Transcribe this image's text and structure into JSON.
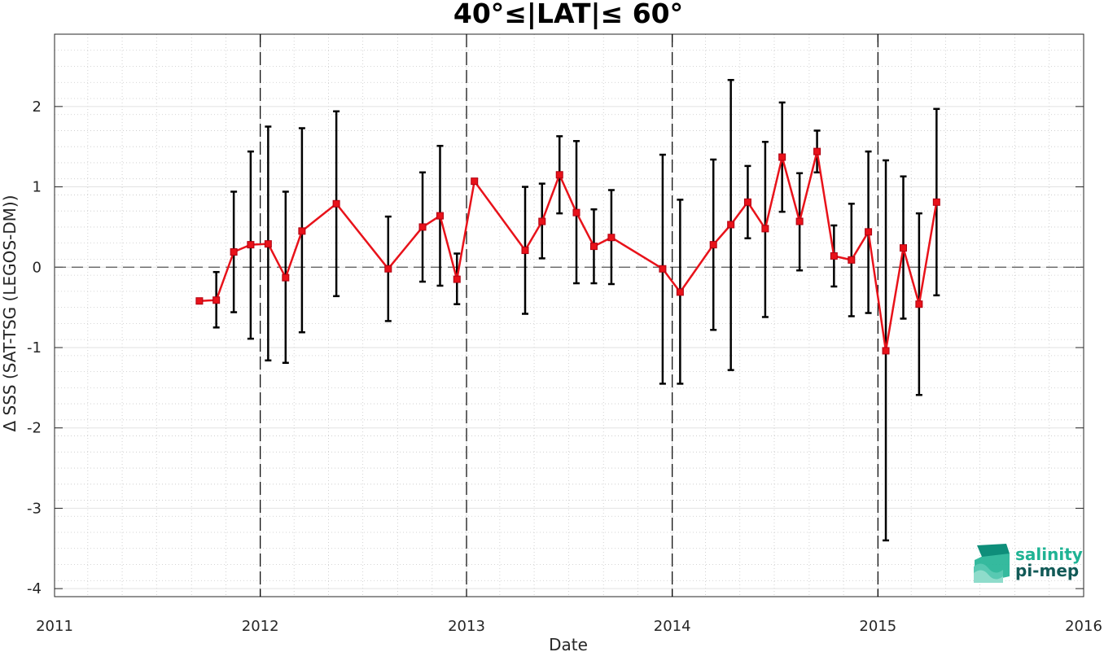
{
  "chart_data": {
    "type": "line",
    "title": "40°≤|LAT|≤ 60°",
    "xlabel": "Date",
    "ylabel": "Δ SSS (SAT-TSG (LEGOS-DM))",
    "xlim": [
      "2011-01-01",
      "2016-01-01"
    ],
    "ylim": [
      -4.1,
      2.9
    ],
    "xticks": [
      "2011",
      "2012",
      "2013",
      "2014",
      "2015",
      "2016"
    ],
    "yticks": [
      -4,
      -3,
      -2,
      -1,
      0,
      1,
      2
    ],
    "ytick_labels": [
      "-4",
      "-3",
      "-2",
      "-1",
      "0",
      "1",
      "2"
    ],
    "grid": true,
    "year_boundaries": [
      "2012-01-01",
      "2013-01-01",
      "2014-01-01",
      "2015-01-01"
    ],
    "zero_line": 0,
    "series": [
      {
        "color": "#e8121a",
        "marker": "square",
        "errorbar_color": "#000000",
        "points": [
          {
            "x": "2011-09-15",
            "y": -0.42,
            "lo": -0.42,
            "hi": -0.42
          },
          {
            "x": "2011-10-15",
            "y": -0.41,
            "lo": -0.75,
            "hi": -0.06
          },
          {
            "x": "2011-11-15",
            "y": 0.19,
            "lo": -0.56,
            "hi": 0.94
          },
          {
            "x": "2011-12-15",
            "y": 0.28,
            "lo": -0.89,
            "hi": 1.44
          },
          {
            "x": "2012-01-15",
            "y": 0.29,
            "lo": -1.16,
            "hi": 1.75
          },
          {
            "x": "2012-02-15",
            "y": -0.13,
            "lo": -1.19,
            "hi": 0.94
          },
          {
            "x": "2012-03-15",
            "y": 0.45,
            "lo": -0.81,
            "hi": 1.73
          },
          {
            "x": "2012-05-15",
            "y": 0.79,
            "lo": -0.36,
            "hi": 1.94
          },
          {
            "x": "2012-08-15",
            "y": -0.02,
            "lo": -0.67,
            "hi": 0.63
          },
          {
            "x": "2012-10-15",
            "y": 0.5,
            "lo": -0.18,
            "hi": 1.18
          },
          {
            "x": "2012-11-15",
            "y": 0.64,
            "lo": -0.23,
            "hi": 1.51
          },
          {
            "x": "2012-12-15",
            "y": -0.15,
            "lo": -0.46,
            "hi": 0.17
          },
          {
            "x": "2013-01-15",
            "y": 1.07,
            "lo": 1.07,
            "hi": 1.07
          },
          {
            "x": "2013-04-15",
            "y": 0.21,
            "lo": -0.58,
            "hi": 1.0
          },
          {
            "x": "2013-05-15",
            "y": 0.57,
            "lo": 0.11,
            "hi": 1.04
          },
          {
            "x": "2013-06-15",
            "y": 1.15,
            "lo": 0.67,
            "hi": 1.63
          },
          {
            "x": "2013-07-15",
            "y": 0.68,
            "lo": -0.2,
            "hi": 1.57
          },
          {
            "x": "2013-08-15",
            "y": 0.26,
            "lo": -0.2,
            "hi": 0.72
          },
          {
            "x": "2013-09-15",
            "y": 0.37,
            "lo": -0.21,
            "hi": 0.96
          },
          {
            "x": "2013-12-15",
            "y": -0.02,
            "lo": -1.45,
            "hi": 1.4
          },
          {
            "x": "2014-01-15",
            "y": -0.31,
            "lo": -1.45,
            "hi": 0.84
          },
          {
            "x": "2014-03-15",
            "y": 0.28,
            "lo": -0.78,
            "hi": 1.34
          },
          {
            "x": "2014-04-15",
            "y": 0.53,
            "lo": -1.28,
            "hi": 2.33
          },
          {
            "x": "2014-05-15",
            "y": 0.81,
            "lo": 0.36,
            "hi": 1.26
          },
          {
            "x": "2014-06-15",
            "y": 0.48,
            "lo": -0.62,
            "hi": 1.56
          },
          {
            "x": "2014-07-15",
            "y": 1.37,
            "lo": 0.69,
            "hi": 2.05
          },
          {
            "x": "2014-08-15",
            "y": 0.57,
            "lo": -0.04,
            "hi": 1.17
          },
          {
            "x": "2014-09-15",
            "y": 1.44,
            "lo": 1.18,
            "hi": 1.7
          },
          {
            "x": "2014-10-15",
            "y": 0.14,
            "lo": -0.24,
            "hi": 0.52
          },
          {
            "x": "2014-11-15",
            "y": 0.09,
            "lo": -0.61,
            "hi": 0.79
          },
          {
            "x": "2014-12-15",
            "y": 0.44,
            "lo": -0.57,
            "hi": 1.44
          },
          {
            "x": "2015-01-15",
            "y": -1.04,
            "lo": -3.4,
            "hi": 1.33
          },
          {
            "x": "2015-02-15",
            "y": 0.24,
            "lo": -0.64,
            "hi": 1.13
          },
          {
            "x": "2015-03-15",
            "y": -0.46,
            "lo": -1.59,
            "hi": 0.67
          },
          {
            "x": "2015-04-15",
            "y": 0.81,
            "lo": -0.35,
            "hi": 1.97
          }
        ]
      }
    ]
  },
  "logo": {
    "line1": "salinity",
    "line2": "pi-mep",
    "color1": "#1fb394",
    "color2": "#125a57"
  }
}
